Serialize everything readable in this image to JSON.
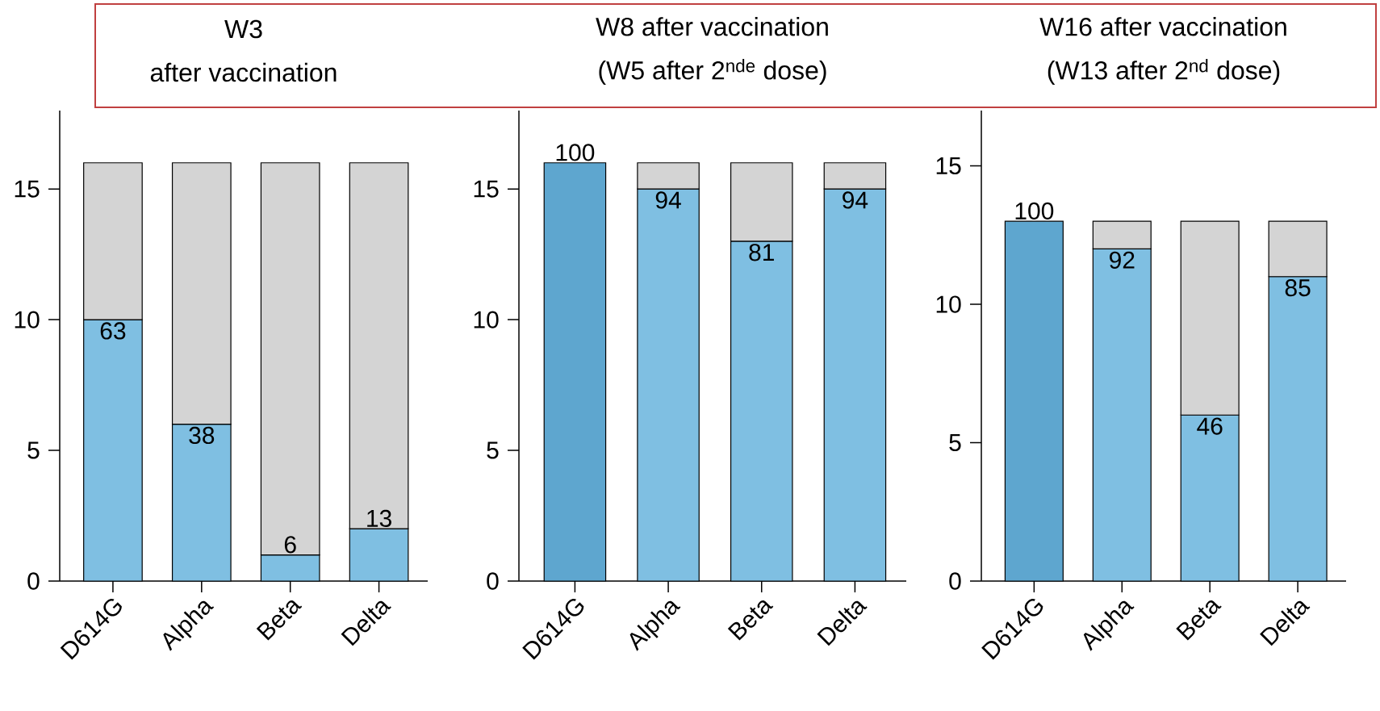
{
  "chart_data": [
    {
      "type": "bar",
      "title": "W3",
      "subtitle": "after vaccination",
      "categories": [
        "D614G",
        "Alpha",
        "Beta",
        "Delta"
      ],
      "stacked": true,
      "ylim": [
        0,
        18
      ],
      "yticks": [
        0,
        5,
        10,
        15
      ],
      "series": [
        {
          "colors": [
            "#7fbfe2",
            "#7fbfe2",
            "#7fbfe2",
            "#7fbfe2"
          ],
          "values": [
            10,
            6,
            1,
            2
          ]
        },
        {
          "color": "#d4d4d4",
          "values": [
            6,
            10,
            15,
            14
          ]
        }
      ],
      "annotations": [
        {
          "text": "63",
          "x": "D614G",
          "y": 10
        },
        {
          "text": "38",
          "x": "Alpha",
          "y": 6
        },
        {
          "text": "6",
          "x": "Beta",
          "y": 1
        },
        {
          "text": "13",
          "x": "Delta",
          "y": 2
        }
      ]
    },
    {
      "type": "bar",
      "title": "W8 after vaccination",
      "subtitle": "(W5 after 2$^{nde}$ dose)",
      "categories": [
        "D614G",
        "Alpha",
        "Beta",
        "Delta"
      ],
      "stacked": true,
      "ylim": [
        0,
        18
      ],
      "yticks": [
        0,
        5,
        10,
        15
      ],
      "series": [
        {
          "colors": [
            "#5ea6cf",
            "#7fbfe2",
            "#7fbfe2",
            "#7fbfe2"
          ],
          "values": [
            16,
            15,
            13,
            15
          ]
        },
        {
          "color": "#d4d4d4",
          "values": [
            0,
            1,
            3,
            1
          ]
        }
      ],
      "annotations": [
        {
          "text": "100",
          "x": "D614G",
          "y": 16
        },
        {
          "text": "94",
          "x": "Alpha",
          "y": 15
        },
        {
          "text": "81",
          "x": "Beta",
          "y": 13
        },
        {
          "text": "94",
          "x": "Delta",
          "y": 15
        }
      ]
    },
    {
      "type": "bar",
      "title": "W16 after vaccination",
      "subtitle": "(W13 after 2$^{nd}$ dose)",
      "categories": [
        "D614G",
        "Alpha",
        "Beta",
        "Delta"
      ],
      "stacked": true,
      "ylim": [
        0,
        17
      ],
      "yticks": [
        0,
        5,
        10,
        15
      ],
      "series": [
        {
          "colors": [
            "#5ea6cf",
            "#7fbfe2",
            "#7fbfe2",
            "#7fbfe2"
          ],
          "values": [
            13,
            12,
            6,
            11
          ]
        },
        {
          "color": "#d4d4d4",
          "values": [
            0,
            1,
            7,
            2
          ]
        }
      ],
      "annotations": [
        {
          "text": "100",
          "x": "D614G",
          "y": 13
        },
        {
          "text": "92",
          "x": "Alpha",
          "y": 12
        },
        {
          "text": "46",
          "x": "Beta",
          "y": 6
        },
        {
          "text": "85",
          "x": "Delta",
          "y": 11
        }
      ]
    }
  ]
}
